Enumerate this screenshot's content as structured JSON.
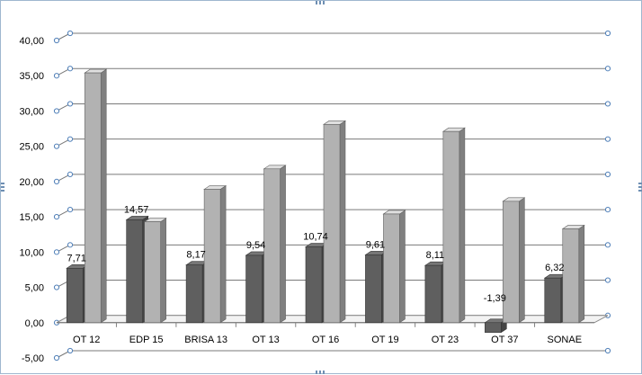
{
  "chart_data": {
    "type": "bar",
    "style": "3d-clustered",
    "categories": [
      "OT 12",
      "EDP 15",
      "BRISA 13",
      "OT 13",
      "OT 16",
      "OT 19",
      "OT 23",
      "OT 37",
      "SONAE"
    ],
    "series": [
      {
        "values": [
          7.71,
          14.57,
          8.17,
          9.54,
          10.74,
          9.61,
          8.11,
          -1.39,
          6.32
        ],
        "color": "#5f5f5f"
      },
      {
        "values": [
          35.4,
          14.3,
          18.9,
          21.8,
          28.1,
          15.4,
          27.1,
          17.2,
          13.3
        ],
        "color": "#b2b2b2"
      }
    ],
    "data_labels": [
      "7,71",
      "14,57",
      "8,17",
      "9,54",
      "10,74",
      "9,61",
      "8,11",
      "-1,39",
      "6,32"
    ],
    "y_ticks": [
      "-5,00",
      "0,00",
      "5,00",
      "10,00",
      "15,00",
      "20,00",
      "25,00",
      "30,00",
      "35,00",
      "40,00"
    ],
    "ylim": [
      -5,
      40
    ],
    "grid": true,
    "legend": "none"
  }
}
